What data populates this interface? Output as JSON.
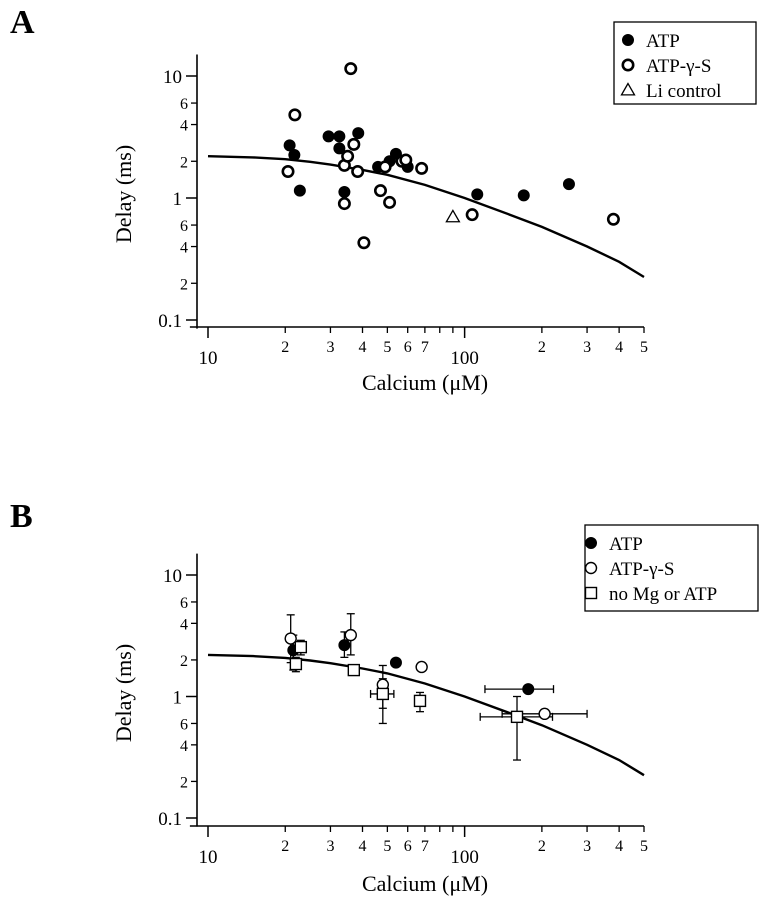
{
  "figure": {
    "background": "#ffffff",
    "ink": "#000000"
  },
  "chart_data": [
    {
      "type": "scatter",
      "panel": "A",
      "xlabel": "Calcium (μM)",
      "ylabel": "Delay (ms)",
      "xscale": "log",
      "yscale": "log",
      "xlim": [
        8.5,
        500
      ],
      "ylim": [
        0.085,
        15
      ],
      "x_major_ticks": [
        {
          "v": 10,
          "label": "10"
        },
        {
          "v": 100,
          "label": "100"
        }
      ],
      "x_minor_ticks": [
        {
          "v": 20,
          "label": "2"
        },
        {
          "v": 30,
          "label": "3"
        },
        {
          "v": 40,
          "label": "4"
        },
        {
          "v": 50,
          "label": "5"
        },
        {
          "v": 60,
          "label": "6"
        },
        {
          "v": 70,
          "label": "7"
        },
        {
          "v": 80,
          "label": ""
        },
        {
          "v": 90,
          "label": ""
        },
        {
          "v": 200,
          "label": "2"
        },
        {
          "v": 300,
          "label": "3"
        },
        {
          "v": 400,
          "label": "4"
        },
        {
          "v": 500,
          "label": "5"
        }
      ],
      "y_major_ticks": [
        {
          "v": 0.1,
          "label": "0.1"
        },
        {
          "v": 1,
          "label": "1"
        },
        {
          "v": 10,
          "label": "10"
        }
      ],
      "y_minor_ticks": [
        {
          "v": 0.2,
          "label": "2"
        },
        {
          "v": 0.4,
          "label": "4"
        },
        {
          "v": 0.6,
          "label": "6"
        },
        {
          "v": 2,
          "label": "2"
        },
        {
          "v": 4,
          "label": "4"
        },
        {
          "v": 6,
          "label": "6"
        }
      ],
      "legend": {
        "position": "top-right",
        "entries": [
          {
            "label": "ATP",
            "marker": "filled-circle"
          },
          {
            "label": "ATP-γ-S",
            "marker": "open-circle"
          },
          {
            "label": "Li control",
            "marker": "open-triangle"
          }
        ]
      },
      "series": [
        {
          "name": "ATP",
          "marker": "filled-circle",
          "points": [
            {
              "x": 20.8,
              "y": 2.7
            },
            {
              "x": 21.7,
              "y": 2.25
            },
            {
              "x": 22.8,
              "y": 1.15
            },
            {
              "x": 29.5,
              "y": 3.2
            },
            {
              "x": 32.5,
              "y": 3.2
            },
            {
              "x": 32.5,
              "y": 2.55
            },
            {
              "x": 34.0,
              "y": 1.12
            },
            {
              "x": 38.5,
              "y": 3.4
            },
            {
              "x": 46.0,
              "y": 1.8
            },
            {
              "x": 51.0,
              "y": 2.0
            },
            {
              "x": 54.0,
              "y": 2.3
            },
            {
              "x": 60.0,
              "y": 1.8
            },
            {
              "x": 112.0,
              "y": 1.07
            },
            {
              "x": 170.0,
              "y": 1.05
            },
            {
              "x": 255.0,
              "y": 1.3
            }
          ]
        },
        {
          "name": "ATP-γ-S",
          "marker": "open-circle",
          "points": [
            {
              "x": 20.5,
              "y": 1.65
            },
            {
              "x": 21.8,
              "y": 4.8
            },
            {
              "x": 34.0,
              "y": 0.9
            },
            {
              "x": 34.0,
              "y": 1.85
            },
            {
              "x": 35.0,
              "y": 2.2
            },
            {
              "x": 36.0,
              "y": 11.5
            },
            {
              "x": 37.0,
              "y": 2.75
            },
            {
              "x": 38.3,
              "y": 1.65
            },
            {
              "x": 40.5,
              "y": 0.43
            },
            {
              "x": 47.0,
              "y": 1.15
            },
            {
              "x": 49.0,
              "y": 1.8
            },
            {
              "x": 51.0,
              "y": 0.92
            },
            {
              "x": 57.0,
              "y": 2.0
            },
            {
              "x": 59.0,
              "y": 2.05
            },
            {
              "x": 68.0,
              "y": 1.75
            },
            {
              "x": 107.0,
              "y": 0.73
            },
            {
              "x": 380.0,
              "y": 0.67
            }
          ]
        },
        {
          "name": "Li control",
          "marker": "open-triangle",
          "points": [
            {
              "x": 90.0,
              "y": 0.7
            }
          ]
        }
      ],
      "curve": {
        "name": "model fit",
        "x": [
          10,
          15,
          20,
          25,
          30,
          40,
          50,
          70,
          100,
          150,
          200,
          300,
          400,
          500
        ],
        "y": [
          2.2,
          2.15,
          2.08,
          1.98,
          1.88,
          1.7,
          1.55,
          1.28,
          1.0,
          0.73,
          0.58,
          0.4,
          0.3,
          0.225
        ]
      }
    },
    {
      "type": "scatter",
      "panel": "B",
      "xlabel": "Calcium (μM)",
      "ylabel": "Delay (ms)",
      "xscale": "log",
      "yscale": "log",
      "xlim": [
        8.5,
        500
      ],
      "ylim": [
        0.085,
        15
      ],
      "x_major_ticks": [
        {
          "v": 10,
          "label": "10"
        },
        {
          "v": 100,
          "label": "100"
        }
      ],
      "x_minor_ticks": [
        {
          "v": 20,
          "label": "2"
        },
        {
          "v": 30,
          "label": "3"
        },
        {
          "v": 40,
          "label": "4"
        },
        {
          "v": 50,
          "label": "5"
        },
        {
          "v": 60,
          "label": "6"
        },
        {
          "v": 70,
          "label": "7"
        },
        {
          "v": 80,
          "label": ""
        },
        {
          "v": 90,
          "label": ""
        },
        {
          "v": 200,
          "label": "2"
        },
        {
          "v": 300,
          "label": "3"
        },
        {
          "v": 400,
          "label": "4"
        },
        {
          "v": 500,
          "label": "5"
        }
      ],
      "y_major_ticks": [
        {
          "v": 0.1,
          "label": "0.1"
        },
        {
          "v": 1,
          "label": "1"
        },
        {
          "v": 10,
          "label": "10"
        }
      ],
      "y_minor_ticks": [
        {
          "v": 0.2,
          "label": "2"
        },
        {
          "v": 0.4,
          "label": "4"
        },
        {
          "v": 0.6,
          "label": "6"
        },
        {
          "v": 2,
          "label": "2"
        },
        {
          "v": 4,
          "label": "4"
        },
        {
          "v": 6,
          "label": "6"
        }
      ],
      "legend": {
        "position": "top-right",
        "entries": [
          {
            "label": "ATP",
            "marker": "filled-circle"
          },
          {
            "label": "ATP-γ-S",
            "marker": "open-circle"
          },
          {
            "label": "no Mg or ATP",
            "marker": "open-square"
          }
        ]
      },
      "series": [
        {
          "name": "ATP",
          "marker": "filled-circle",
          "points": [
            {
              "x": 21.5,
              "y": 2.4,
              "yerr": [
                1.65,
                3.2
              ]
            },
            {
              "x": 34.0,
              "y": 2.65,
              "yerr": [
                2.1,
                3.4
              ]
            },
            {
              "x": 54.0,
              "y": 1.9
            },
            {
              "x": 177.0,
              "y": 1.15,
              "xerr": [
                120.0,
                222.0
              ]
            }
          ]
        },
        {
          "name": "ATP-γ-S",
          "marker": "open-circle",
          "points": [
            {
              "x": 21.0,
              "y": 3.0,
              "yerr": [
                1.9,
                4.7
              ]
            },
            {
              "x": 36.0,
              "y": 3.2,
              "yerr": [
                2.2,
                4.8
              ]
            },
            {
              "x": 48.0,
              "y": 1.25,
              "yerr": [
                0.8,
                1.8
              ]
            },
            {
              "x": 68.0,
              "y": 1.75
            },
            {
              "x": 205.0,
              "y": 0.72,
              "xerr": [
                140.0,
                300.0
              ]
            }
          ]
        },
        {
          "name": "no Mg or ATP",
          "marker": "open-square",
          "points": [
            {
              "x": 22.0,
              "y": 1.85,
              "yerr": [
                1.6,
                2.1
              ]
            },
            {
              "x": 23.0,
              "y": 2.55,
              "yerr": [
                2.2,
                2.9
              ]
            },
            {
              "x": 37.0,
              "y": 1.65,
              "yerr": [
                1.5,
                1.8
              ]
            },
            {
              "x": 48.0,
              "y": 1.05,
              "yerr": [
                0.6,
                1.4
              ],
              "xerr": [
                43.0,
                53.0
              ]
            },
            {
              "x": 67.0,
              "y": 0.92,
              "yerr": [
                0.75,
                1.08
              ]
            },
            {
              "x": 160.0,
              "y": 0.68,
              "yerr": [
                0.3,
                1.0
              ],
              "xerr": [
                115.0,
                220.0
              ]
            }
          ]
        }
      ],
      "curve": {
        "name": "model fit",
        "x": [
          10,
          15,
          20,
          25,
          30,
          40,
          50,
          70,
          100,
          150,
          200,
          300,
          400,
          500
        ],
        "y": [
          2.2,
          2.15,
          2.08,
          1.98,
          1.88,
          1.7,
          1.55,
          1.28,
          1.0,
          0.73,
          0.58,
          0.4,
          0.3,
          0.225
        ]
      }
    }
  ]
}
